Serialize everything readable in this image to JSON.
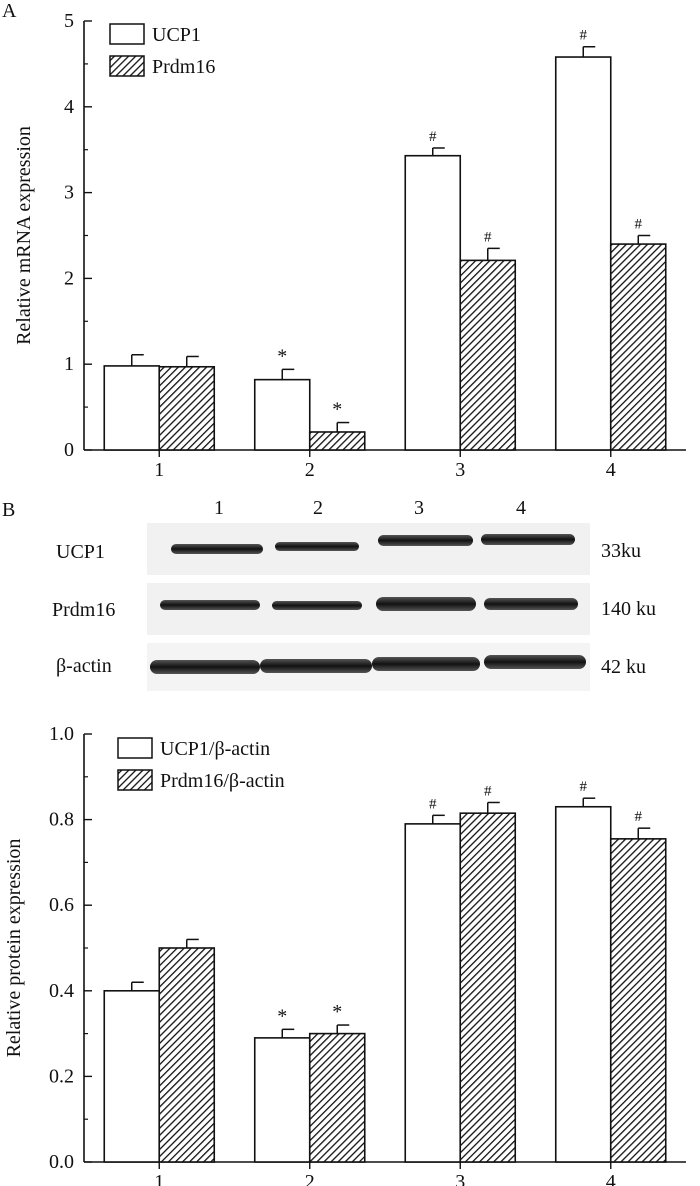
{
  "panel_a": {
    "letter": "A",
    "chart_data": {
      "type": "bar",
      "categories": [
        "1",
        "2",
        "3",
        "4"
      ],
      "ylabel": "Relative mRNA expression",
      "xlabel": "",
      "ylim": [
        0,
        5
      ],
      "yticks": [
        "0",
        "1",
        "2",
        "3",
        "4",
        "5"
      ],
      "legend_position": "top-left",
      "series": [
        {
          "name": "UCP1",
          "pattern": "open",
          "values": [
            0.98,
            0.82,
            3.43,
            4.58
          ],
          "errors": [
            0.13,
            0.12,
            0.09,
            0.12
          ],
          "marks": [
            "",
            "*",
            "#",
            "#"
          ]
        },
        {
          "name": "Prdm16",
          "pattern": "hatched",
          "values": [
            0.97,
            0.21,
            2.21,
            2.4
          ],
          "errors": [
            0.12,
            0.11,
            0.14,
            0.1
          ],
          "marks": [
            "",
            "*",
            "#",
            "#"
          ]
        }
      ]
    }
  },
  "panel_b": {
    "letter": "B",
    "blot": {
      "lanes": [
        "1",
        "2",
        "3",
        "4"
      ],
      "rows": [
        {
          "label": "UCP1",
          "size": "33ku"
        },
        {
          "label": "Prdm16",
          "size": "140 ku"
        },
        {
          "label": "β-actin",
          "size": "42 ku"
        }
      ]
    },
    "chart_data": {
      "type": "bar",
      "categories": [
        "1",
        "2",
        "3",
        "4"
      ],
      "ylabel": "Relative protein expression",
      "xlabel": "",
      "ylim": [
        0,
        1.0
      ],
      "yticks": [
        "0.0",
        "0.2",
        "0.4",
        "0.6",
        "0.8",
        "1.0"
      ],
      "legend_position": "top-left",
      "series": [
        {
          "name": "UCP1/β-actin",
          "pattern": "open",
          "values": [
            0.4,
            0.29,
            0.79,
            0.83
          ],
          "errors": [
            0.02,
            0.02,
            0.02,
            0.02
          ],
          "marks": [
            "",
            "*",
            "#",
            "#"
          ]
        },
        {
          "name": "Prdm16/β-actin",
          "pattern": "hatched",
          "values": [
            0.5,
            0.3,
            0.815,
            0.755
          ],
          "errors": [
            0.02,
            0.02,
            0.025,
            0.025
          ],
          "marks": [
            "",
            "*",
            "#",
            "#"
          ]
        }
      ]
    }
  }
}
